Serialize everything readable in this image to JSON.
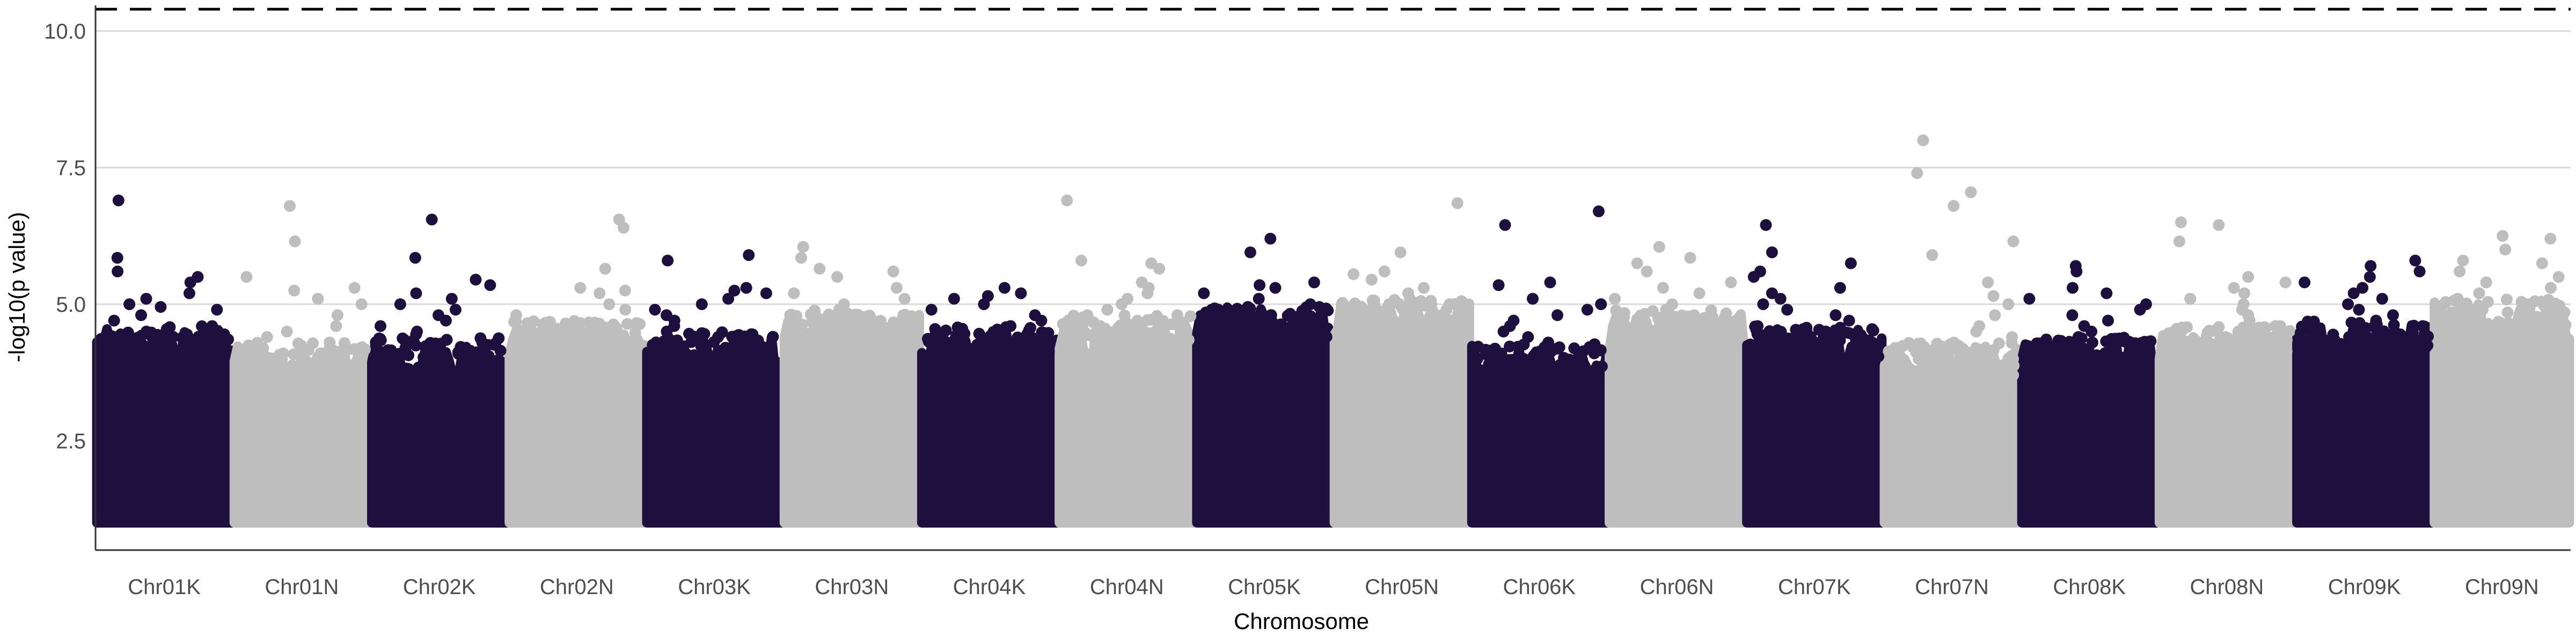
{
  "chart_data": {
    "type": "scatter",
    "subtype": "manhattan",
    "title": "",
    "xlabel": "Chromosome",
    "ylabel": "-log10(p value)",
    "ylim": [
      0.5,
      10.4
    ],
    "y_ticks": [
      2.5,
      5.0,
      7.5,
      10.0
    ],
    "y_tick_labels": [
      "2.5",
      "5.0",
      "7.5",
      "10.0"
    ],
    "grid": "horizontal major gridlines",
    "legend": "none",
    "significance_threshold": 10.4,
    "threshold_style": "dashed black line",
    "colors": {
      "odd": "#1e103e",
      "even": "#bebebe",
      "grid": "#d9d9d9",
      "threshold": "#000000"
    },
    "min_plotted_value": 1.0,
    "categories": [
      "Chr01K",
      "Chr01N",
      "Chr02K",
      "Chr02N",
      "Chr03K",
      "Chr03N",
      "Chr04K",
      "Chr04N",
      "Chr05K",
      "Chr05N",
      "Chr06K",
      "Chr06N",
      "Chr07K",
      "Chr07N",
      "Chr08K",
      "Chr08N",
      "Chr09K",
      "Chr09N"
    ],
    "series": [
      {
        "chromosome": "Chr01K",
        "color_group": "odd",
        "bulk_top": 4.2,
        "points": [
          6.9,
          5.85,
          5.6,
          5.5,
          5.4,
          5.2,
          5.1,
          5.0,
          4.95,
          4.9,
          4.8,
          4.7,
          4.6,
          4.5,
          4.45,
          4.4,
          4.3
        ]
      },
      {
        "chromosome": "Chr01N",
        "color_group": "even",
        "bulk_top": 3.9,
        "points": [
          6.8,
          6.15,
          5.5,
          5.3,
          5.25,
          5.1,
          5.0,
          4.8,
          4.6,
          4.5,
          4.4,
          4.3,
          4.2,
          4.1,
          4.0
        ]
      },
      {
        "chromosome": "Chr02K",
        "color_group": "odd",
        "bulk_top": 4.0,
        "points": [
          6.55,
          5.85,
          5.45,
          5.35,
          5.2,
          5.1,
          5.0,
          4.9,
          4.8,
          4.7,
          4.6,
          4.5,
          4.45,
          4.3,
          4.2
        ]
      },
      {
        "chromosome": "Chr02N",
        "color_group": "even",
        "bulk_top": 4.3,
        "points": [
          6.55,
          6.4,
          5.65,
          5.3,
          5.25,
          5.2,
          5.0,
          4.9,
          4.8,
          4.7,
          4.6,
          4.5,
          4.4
        ]
      },
      {
        "chromosome": "Chr03K",
        "color_group": "odd",
        "bulk_top": 4.1,
        "points": [
          5.9,
          5.8,
          5.3,
          5.25,
          5.2,
          5.1,
          5.0,
          4.9,
          4.8,
          4.7,
          4.6,
          4.5,
          4.4,
          4.3
        ]
      },
      {
        "chromosome": "Chr03N",
        "color_group": "even",
        "bulk_top": 4.5,
        "points": [
          6.05,
          5.85,
          5.65,
          5.6,
          5.5,
          5.3,
          5.2,
          5.1,
          5.0,
          4.9,
          4.8,
          4.7,
          4.6
        ]
      },
      {
        "chromosome": "Chr04K",
        "color_group": "odd",
        "bulk_top": 4.2,
        "points": [
          5.3,
          5.2,
          5.15,
          5.1,
          5.0,
          4.9,
          4.8,
          4.7,
          4.6,
          4.5,
          4.4,
          4.3
        ]
      },
      {
        "chromosome": "Chr04N",
        "color_group": "even",
        "bulk_top": 4.4,
        "points": [
          6.9,
          5.8,
          5.75,
          5.65,
          5.4,
          5.3,
          5.2,
          5.1,
          5.0,
          4.9,
          4.8,
          4.7,
          4.6,
          4.5
        ]
      },
      {
        "chromosome": "Chr05K",
        "color_group": "odd",
        "bulk_top": 4.6,
        "points": [
          6.2,
          5.95,
          5.4,
          5.35,
          5.3,
          5.2,
          5.1,
          5.0,
          4.95,
          4.9,
          4.8,
          4.75,
          4.7
        ]
      },
      {
        "chromosome": "Chr05N",
        "color_group": "even",
        "bulk_top": 4.7,
        "points": [
          6.85,
          5.95,
          5.6,
          5.55,
          5.45,
          5.3,
          5.2,
          5.1,
          5.0,
          4.9,
          4.8
        ]
      },
      {
        "chromosome": "Chr06K",
        "color_group": "odd",
        "bulk_top": 3.9,
        "points": [
          6.7,
          6.45,
          5.4,
          5.35,
          5.1,
          5.0,
          4.9,
          4.8,
          4.7,
          4.6,
          4.5,
          4.4,
          4.3,
          4.1
        ]
      },
      {
        "chromosome": "Chr06N",
        "color_group": "even",
        "bulk_top": 4.5,
        "points": [
          6.05,
          5.85,
          5.75,
          5.6,
          5.4,
          5.3,
          5.2,
          5.1,
          5.0,
          4.9,
          4.8,
          4.7,
          4.6
        ]
      },
      {
        "chromosome": "Chr07K",
        "color_group": "odd",
        "bulk_top": 4.2,
        "points": [
          6.45,
          5.95,
          5.75,
          5.6,
          5.5,
          5.3,
          5.2,
          5.1,
          5.0,
          4.9,
          4.8,
          4.7,
          4.6,
          4.5,
          4.4,
          4.3
        ]
      },
      {
        "chromosome": "Chr07N",
        "color_group": "even",
        "bulk_top": 3.9,
        "points": [
          8.0,
          7.4,
          7.05,
          6.8,
          6.15,
          5.9,
          5.4,
          5.15,
          5.0,
          4.8,
          4.6,
          4.5,
          4.4,
          4.2,
          4.1,
          4.0
        ]
      },
      {
        "chromosome": "Chr08K",
        "color_group": "odd",
        "bulk_top": 4.0,
        "points": [
          5.7,
          5.6,
          5.3,
          5.2,
          5.1,
          5.0,
          4.9,
          4.8,
          4.7,
          4.6,
          4.5,
          4.4,
          4.3,
          4.2,
          4.1
        ]
      },
      {
        "chromosome": "Chr08N",
        "color_group": "even",
        "bulk_top": 4.2,
        "points": [
          6.5,
          6.45,
          6.15,
          5.5,
          5.4,
          5.3,
          5.2,
          5.1,
          5.0,
          4.9,
          4.8,
          4.7,
          4.6,
          4.5,
          4.4
        ]
      },
      {
        "chromosome": "Chr09K",
        "color_group": "odd",
        "bulk_top": 4.3,
        "points": [
          5.8,
          5.7,
          5.6,
          5.5,
          5.4,
          5.3,
          5.2,
          5.1,
          5.0,
          4.9,
          4.8,
          4.7,
          4.6,
          4.5,
          4.4
        ]
      },
      {
        "chromosome": "Chr09N",
        "color_group": "even",
        "bulk_top": 4.7,
        "points": [
          6.25,
          6.2,
          6.0,
          5.8,
          5.75,
          5.6,
          5.5,
          5.4,
          5.3,
          5.2,
          5.1,
          5.0,
          4.9
        ]
      }
    ]
  }
}
